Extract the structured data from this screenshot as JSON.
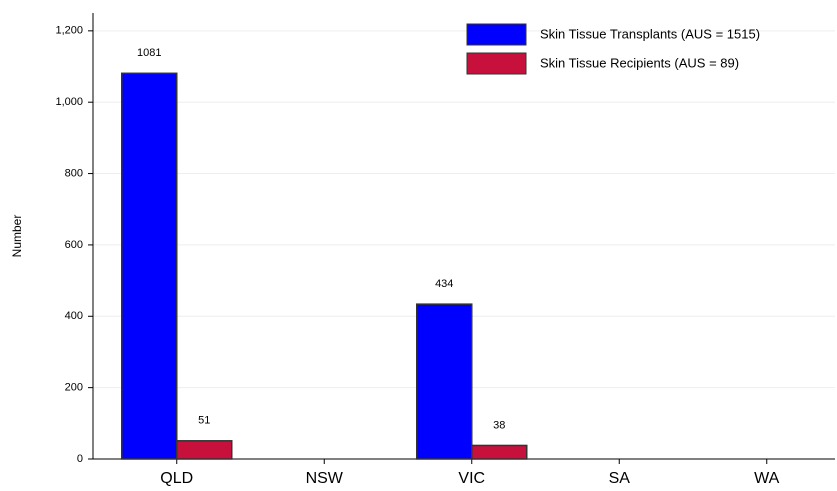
{
  "chart_data": {
    "type": "bar",
    "y_label": "Number",
    "categories": [
      "QLD",
      "NSW",
      "VIC",
      "SA",
      "WA"
    ],
    "series": [
      {
        "name": "Skin Tissue Transplants (AUS = 1515)",
        "color": "#0000ff",
        "values": [
          1081,
          null,
          434,
          null,
          null
        ]
      },
      {
        "name": "Skin Tissue Recipients (AUS = 89)",
        "color": "#c8103c",
        "values": [
          51,
          null,
          38,
          null,
          null
        ]
      }
    ],
    "ylim": [
      0,
      1250
    ],
    "yticks": [
      0,
      200,
      400,
      600,
      800,
      {
        "value": 1000,
        "label": "1,000"
      },
      {
        "value": 1200,
        "label": "1,200"
      }
    ],
    "grid": true,
    "legend": "top-right"
  }
}
